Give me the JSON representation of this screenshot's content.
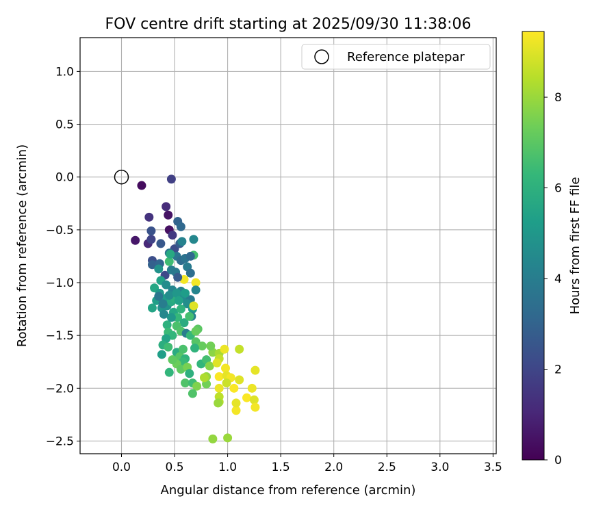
{
  "chart_data": {
    "type": "scatter",
    "title": "FOV centre drift starting at 2025/09/30 11:38:06",
    "xlabel": "Angular distance from reference (arcmin)",
    "ylabel": "Rotation from reference (arcmin)",
    "xlim": [
      -0.39,
      3.53
    ],
    "ylim": [
      -2.62,
      1.32
    ],
    "xticks": [
      0.0,
      0.5,
      1.0,
      1.5,
      2.0,
      2.5,
      3.0,
      3.5
    ],
    "xtick_labels": [
      "0.0",
      "0.5",
      "1.0",
      "1.5",
      "2.0",
      "2.5",
      "3.0",
      "3.5"
    ],
    "yticks": [
      1.0,
      0.5,
      0.0,
      -0.5,
      -1.0,
      -1.5,
      -2.0,
      -2.5
    ],
    "ytick_labels": [
      "1.0",
      "0.5",
      "0.0",
      "−0.5",
      "−1.0",
      "−1.5",
      "−2.0",
      "−2.5"
    ],
    "grid": true,
    "legend": {
      "position": "top-right",
      "entries": [
        "Reference platepar"
      ]
    },
    "reference_point": {
      "x": 0.0,
      "y": 0.0,
      "label": "Reference platepar"
    },
    "colorbar": {
      "label": "Hours from first FF file",
      "range": [
        0,
        9.45
      ],
      "ticks": [
        0,
        2,
        4,
        6,
        8
      ],
      "tick_labels": [
        "0",
        "2",
        "4",
        "6",
        "8"
      ],
      "colormap": "viridis",
      "stops": [
        "#440154",
        "#482878",
        "#3e4989",
        "#31688e",
        "#26828e",
        "#1f9e89",
        "#35b779",
        "#6ece58",
        "#b5de2b",
        "#fde725"
      ]
    },
    "series": [
      {
        "name": "FOV centre drift",
        "columns": [
          "x",
          "y",
          "hours"
        ],
        "points": [
          [
            0.19,
            -0.08,
            0.3
          ],
          [
            0.13,
            -0.6,
            0.6
          ],
          [
            0.45,
            -0.5,
            0.4
          ],
          [
            0.44,
            -0.36,
            0.5
          ],
          [
            0.47,
            -0.02,
            1.8
          ],
          [
            0.25,
            -0.63,
            1.1
          ],
          [
            0.42,
            -0.28,
            1.2
          ],
          [
            0.26,
            -0.38,
            1.4
          ],
          [
            0.48,
            -0.55,
            1.6
          ],
          [
            0.28,
            -0.59,
            1.9
          ],
          [
            0.5,
            -0.68,
            2.2
          ],
          [
            0.37,
            -0.63,
            2.6
          ],
          [
            0.55,
            -0.63,
            2.8
          ],
          [
            0.53,
            -0.42,
            3.0
          ],
          [
            0.56,
            -0.47,
            3.2
          ],
          [
            0.28,
            -0.51,
            2.4
          ],
          [
            0.29,
            -0.79,
            2.3
          ],
          [
            0.29,
            -0.83,
            2.9
          ],
          [
            0.36,
            -0.82,
            3.1
          ],
          [
            0.41,
            -0.93,
            2.1
          ],
          [
            0.45,
            -0.72,
            3.5
          ],
          [
            0.52,
            -0.75,
            3.7
          ],
          [
            0.56,
            -0.79,
            3.3
          ],
          [
            0.6,
            -0.77,
            3.6
          ],
          [
            0.62,
            -0.85,
            3.9
          ],
          [
            0.65,
            -0.91,
            3.4
          ],
          [
            0.47,
            -0.88,
            4.0
          ],
          [
            0.51,
            -0.9,
            3.8
          ],
          [
            0.57,
            -0.61,
            4.2
          ],
          [
            0.68,
            -0.59,
            4.4
          ],
          [
            0.68,
            -0.74,
            6.6
          ],
          [
            0.45,
            -0.8,
            6.5
          ],
          [
            0.35,
            -0.87,
            4.8
          ],
          [
            0.37,
            -0.98,
            5.4
          ],
          [
            0.42,
            -1.02,
            4.6
          ],
          [
            0.48,
            -1.07,
            4.3
          ],
          [
            0.56,
            -1.08,
            4.1
          ],
          [
            0.58,
            -1.15,
            4.5
          ],
          [
            0.65,
            -1.16,
            3.9
          ],
          [
            0.62,
            -1.2,
            4.7
          ],
          [
            0.67,
            -1.25,
            5.1
          ],
          [
            0.66,
            -1.32,
            4.2
          ],
          [
            0.31,
            -1.05,
            5.6
          ],
          [
            0.36,
            -1.1,
            5.0
          ],
          [
            0.33,
            -1.17,
            5.3
          ],
          [
            0.29,
            -1.24,
            5.5
          ],
          [
            0.38,
            -1.24,
            4.9
          ],
          [
            0.4,
            -1.3,
            4.4
          ],
          [
            0.43,
            -1.22,
            4.8
          ],
          [
            0.42,
            -1.15,
            5.2
          ],
          [
            0.47,
            -1.18,
            5.7
          ],
          [
            0.5,
            -1.15,
            5.9
          ],
          [
            0.45,
            -1.12,
            4.6
          ],
          [
            0.52,
            -1.1,
            5.0
          ],
          [
            0.54,
            -1.17,
            5.4
          ],
          [
            0.49,
            -1.28,
            5.6
          ],
          [
            0.53,
            -1.33,
            6.3
          ],
          [
            0.56,
            -1.25,
            6.1
          ],
          [
            0.59,
            -1.38,
            5.8
          ],
          [
            0.43,
            -1.4,
            6.0
          ],
          [
            0.44,
            -1.47,
            6.4
          ],
          [
            0.48,
            -1.5,
            6.2
          ],
          [
            0.42,
            -1.53,
            5.5
          ],
          [
            0.39,
            -1.59,
            5.9
          ],
          [
            0.44,
            -1.61,
            6.5
          ],
          [
            0.52,
            -1.41,
            6.7
          ],
          [
            0.56,
            -1.46,
            6.8
          ],
          [
            0.64,
            -1.32,
            6.6
          ],
          [
            0.61,
            -1.48,
            4.0
          ],
          [
            0.65,
            -1.5,
            6.3
          ],
          [
            0.72,
            -1.44,
            7.0
          ],
          [
            0.7,
            -1.56,
            6.9
          ],
          [
            0.76,
            -1.6,
            7.2
          ],
          [
            0.69,
            -1.62,
            6.1
          ],
          [
            0.52,
            -1.66,
            5.8
          ],
          [
            0.55,
            -1.7,
            6.9
          ],
          [
            0.6,
            -1.72,
            6.1
          ],
          [
            0.58,
            -1.75,
            6.4
          ],
          [
            0.52,
            -1.77,
            7.3
          ],
          [
            0.56,
            -1.82,
            7.1
          ],
          [
            0.62,
            -1.8,
            7.5
          ],
          [
            0.64,
            -1.86,
            6.0
          ],
          [
            0.38,
            -1.68,
            5.3
          ],
          [
            0.45,
            -1.85,
            6.2
          ],
          [
            0.6,
            -1.95,
            6.8
          ],
          [
            0.67,
            -1.95,
            6.5
          ],
          [
            0.71,
            -1.98,
            7.6
          ],
          [
            0.67,
            -2.05,
            6.8
          ],
          [
            0.8,
            -1.96,
            7.4
          ],
          [
            0.75,
            -1.77,
            6.2
          ],
          [
            0.8,
            -1.73,
            6.6
          ],
          [
            0.83,
            -1.79,
            7.7
          ],
          [
            0.8,
            -1.89,
            7.9
          ],
          [
            0.78,
            -1.9,
            8.3
          ],
          [
            0.86,
            -1.66,
            7.8
          ],
          [
            0.84,
            -1.6,
            7.4
          ],
          [
            0.92,
            -1.67,
            8.2
          ],
          [
            0.92,
            -1.72,
            8.6
          ],
          [
            0.97,
            -1.63,
            9.2
          ],
          [
            0.9,
            -1.76,
            9.0
          ],
          [
            0.98,
            -1.81,
            9.3
          ],
          [
            0.92,
            -1.89,
            9.4
          ],
          [
            0.99,
            -1.88,
            9.1
          ],
          [
            1.03,
            -1.9,
            9.3
          ],
          [
            0.99,
            -1.95,
            8.7
          ],
          [
            0.92,
            -2.0,
            9.2
          ],
          [
            1.06,
            -2.0,
            9.4
          ],
          [
            1.11,
            -1.92,
            9.0
          ],
          [
            0.92,
            -2.08,
            8.5
          ],
          [
            0.92,
            -2.13,
            8.4
          ],
          [
            0.91,
            -2.14,
            8.0
          ],
          [
            1.08,
            -2.21,
            9.3
          ],
          [
            1.08,
            -2.14,
            9.1
          ],
          [
            1.18,
            -2.09,
            9.4
          ],
          [
            1.23,
            -2.0,
            9.2
          ],
          [
            1.25,
            -2.11,
            9.0
          ],
          [
            1.26,
            -2.18,
            9.3
          ],
          [
            1.26,
            -1.83,
            9.1
          ],
          [
            1.11,
            -1.63,
            8.6
          ],
          [
            1.0,
            -2.47,
            8.0
          ],
          [
            0.86,
            -2.48,
            7.9
          ],
          [
            0.59,
            -0.97,
            9.3
          ],
          [
            0.7,
            -1.0,
            9.3
          ],
          [
            0.68,
            -1.22,
            9.0
          ],
          [
            0.65,
            -0.75,
            3.2
          ],
          [
            0.46,
            -0.73,
            5.7
          ],
          [
            0.53,
            -0.95,
            2.7
          ],
          [
            0.7,
            -1.07,
            4.3
          ],
          [
            0.6,
            -1.1,
            5.2
          ],
          [
            0.47,
            -1.33,
            5.0
          ],
          [
            0.35,
            -1.13,
            3.7
          ],
          [
            0.39,
            -1.2,
            4.0
          ],
          [
            0.58,
            -1.63,
            6.7
          ],
          [
            0.48,
            -1.73,
            7.1
          ],
          [
            0.7,
            -1.46,
            7.2
          ]
        ]
      }
    ]
  }
}
